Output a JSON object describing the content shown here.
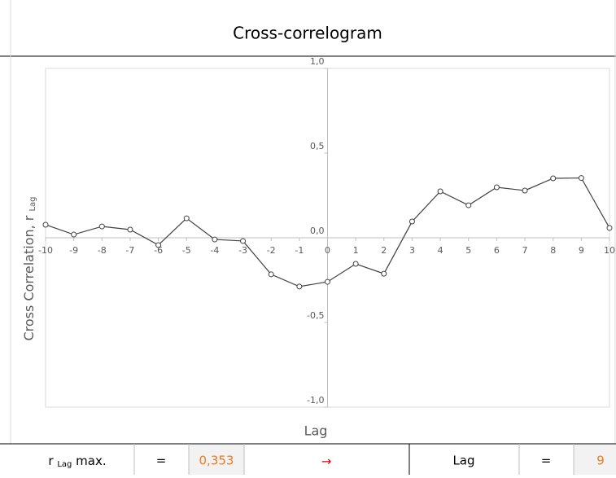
{
  "chart_data": {
    "type": "line",
    "title": "Cross-correlogram",
    "xlabel": "Lag",
    "ylabel": "Cross Correlation, r ",
    "ylabel_sub": "Lag",
    "x": [
      -10,
      -9,
      -8,
      -7,
      -6,
      -5,
      -4,
      -3,
      -2,
      -1,
      0,
      1,
      2,
      3,
      4,
      5,
      6,
      7,
      8,
      9,
      10
    ],
    "series": [
      {
        "color": "#404040",
        "values": [
          0.077,
          0.019,
          0.067,
          0.048,
          -0.043,
          0.115,
          -0.01,
          -0.019,
          -0.216,
          -0.288,
          -0.26,
          -0.154,
          -0.212,
          0.096,
          0.274,
          0.192,
          0.298,
          0.279,
          0.351,
          0.353,
          0.058
        ]
      }
    ],
    "xlim": [
      -10,
      10
    ],
    "xticks": [
      -10,
      -9,
      -8,
      -7,
      -6,
      -5,
      -4,
      -3,
      -2,
      -1,
      0,
      1,
      2,
      3,
      4,
      5,
      6,
      7,
      8,
      9,
      10
    ],
    "ylim": [
      -1,
      1
    ],
    "yticks": [
      {
        "value": -1,
        "label": "-1,0"
      },
      {
        "value": -0.5,
        "label": "-0,5"
      },
      {
        "value": 0,
        "label": "0,0"
      },
      {
        "value": 0.5,
        "label": "0,5"
      },
      {
        "value": 1,
        "label": "1,0"
      }
    ],
    "grid": false
  },
  "summary": {
    "r_label": "r ",
    "r_label_sub": "Lag",
    "r_label_rest": " max.",
    "equals_1": "=",
    "r_max": "0,353",
    "arrow": "→",
    "lag_label": "Lag",
    "equals_2": "=",
    "lag": 9
  }
}
